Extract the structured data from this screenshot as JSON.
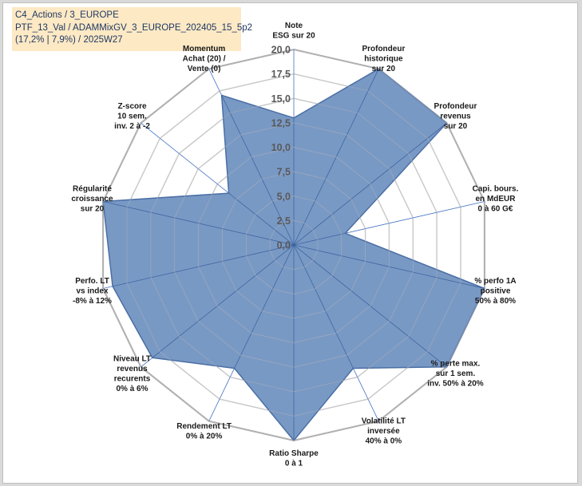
{
  "info_box": {
    "line1": "C4_Actions / 3_EUROPE",
    "line2": "PTF_13_Val / ADAMMixGV_3_EUROPE_202405_15_5p2",
    "line3": "(17,2% | 7,9%) / 2025W27"
  },
  "chart_data": {
    "type": "radar",
    "title": "",
    "rlim": [
      0,
      20
    ],
    "ticks": [
      "0,0",
      "2,5",
      "5,0",
      "7,5",
      "10,0",
      "12,5",
      "15,0",
      "17,5",
      "20,0"
    ],
    "axes": [
      {
        "label": [
          "Note",
          "ESG sur 20"
        ],
        "value": 13
      },
      {
        "label": [
          "Profondeur",
          "historique",
          "sur 20"
        ],
        "value": 20
      },
      {
        "label": [
          "Profondeur",
          "revenus",
          "sur 20"
        ],
        "value": 20
      },
      {
        "label": [
          "Capi. bours.",
          "en MdEUR",
          "0 à 60 G€"
        ],
        "value": 5.4
      },
      {
        "label": [
          "% perfo 1A",
          "positive",
          "50% à 80%"
        ],
        "value": 20
      },
      {
        "label": [
          "% perte max.",
          "sur 1 sem.",
          "inv. 50% à 20%"
        ],
        "value": 20
      },
      {
        "label": [
          "Volatilité LT",
          "inversée",
          "40% à 0%"
        ],
        "value": 14
      },
      {
        "label": [
          "Ratio Sharpe",
          "0 à 1"
        ],
        "value": 20
      },
      {
        "label": [
          "Rendement LT",
          "0% à 20%"
        ],
        "value": 14
      },
      {
        "label": [
          "Niveau LT",
          "revenus",
          "recurents",
          "0% à 6%"
        ],
        "value": 18.5
      },
      {
        "label": [
          "Perfo. LT",
          "vs index",
          "-8% à 12%"
        ],
        "value": 19
      },
      {
        "label": [
          "Régularité",
          "croissance",
          "sur 20"
        ],
        "value": 20
      },
      {
        "label": [
          "Z-score",
          "10 sem.",
          "inv. 2 à -2"
        ],
        "value": 8.5
      },
      {
        "label": [
          "Momentum",
          "Achat (20) /",
          "Vente (0)"
        ],
        "value": 17
      }
    ],
    "series": [
      {
        "name": "",
        "color": "#5b82b8"
      }
    ],
    "grid": true
  }
}
